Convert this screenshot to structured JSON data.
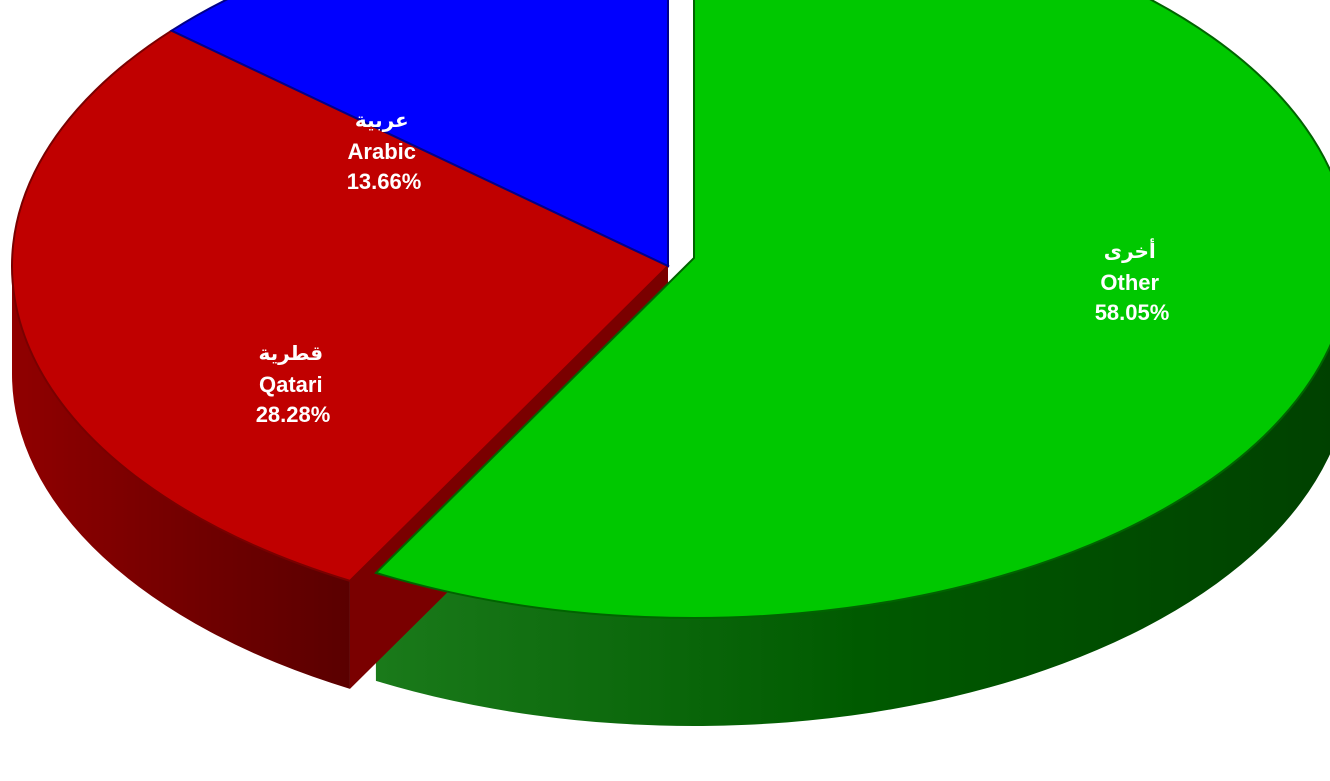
{
  "chart_data": {
    "type": "pie",
    "title": "",
    "slices": [
      {
        "label_ar": "أخرى",
        "label_en": "Other",
        "value": 58.05,
        "value_label": "58.05%",
        "color": "#00c800",
        "side_color": "#006400"
      },
      {
        "label_ar": "قطرية",
        "label_en": "Qatari",
        "value": 28.28,
        "value_label": "28.28%",
        "color": "#c00000",
        "side_color": "#7a0000"
      },
      {
        "label_ar": "عربية",
        "label_en": "Arabic",
        "value": 13.66,
        "value_label": "13.66%",
        "color": "#0000ff",
        "side_color": "#00008a"
      }
    ],
    "legend": "none",
    "exploded": "Other",
    "three_d": true
  }
}
